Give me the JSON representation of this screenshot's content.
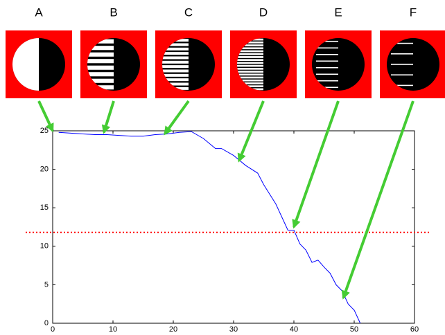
{
  "chart_data": {
    "type": "line",
    "x": [
      1,
      3,
      5,
      7,
      9,
      11,
      13,
      15,
      17,
      19,
      21,
      23,
      25,
      27,
      28,
      30,
      32,
      34,
      35,
      37,
      39,
      40,
      41,
      42,
      43,
      44,
      45,
      46,
      47,
      48,
      49,
      50,
      51
    ],
    "series": [
      {
        "color": "#0000ff",
        "values": [
          24.8,
          24.7,
          24.6,
          24.5,
          24.5,
          24.4,
          24.3,
          24.3,
          24.5,
          24.6,
          24.8,
          24.9,
          24,
          22.7,
          22.7,
          21.8,
          20.5,
          19.5,
          18,
          15.5,
          12.1,
          12.1,
          10.3,
          9.5,
          7.9,
          8.2,
          7.3,
          6.5,
          5,
          4.2,
          2.5,
          1.7,
          0
        ]
      }
    ],
    "threshold": {
      "value": 11.8,
      "color": "#ff0000"
    },
    "annotations": [
      {
        "label": "A",
        "x": 0,
        "y": 25
      },
      {
        "label": "B",
        "x": 8.5,
        "y": 24.8
      },
      {
        "label": "C",
        "x": 18.6,
        "y": 24.6
      },
      {
        "label": "D",
        "x": 30.9,
        "y": 21.1
      },
      {
        "label": "E",
        "x": 40,
        "y": 12.5
      },
      {
        "label": "F",
        "x": 48.2,
        "y": 3.3
      }
    ],
    "arrow_color": "#44cc33",
    "xlim": [
      0,
      60
    ],
    "xticks": [
      0,
      10,
      20,
      30,
      40,
      50,
      60
    ],
    "ylim": [
      0,
      25
    ],
    "yticks": [
      0,
      5,
      10,
      15,
      20,
      25
    ]
  }
}
